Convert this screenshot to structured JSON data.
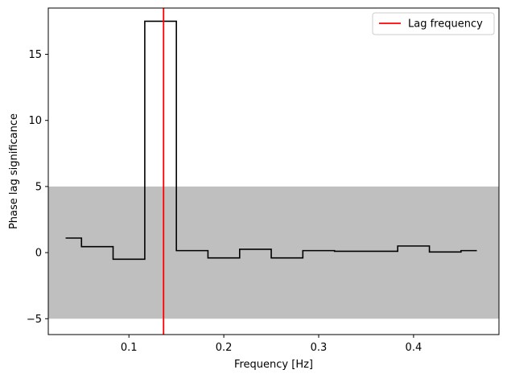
{
  "chart_data": {
    "type": "line",
    "title": "",
    "xlabel": "Frequency [Hz]",
    "ylabel": "Phase lag significance",
    "xlim": [
      0.015,
      0.49
    ],
    "ylim": [
      -6.2,
      18.5
    ],
    "x_ticks": [
      0.1,
      0.2,
      0.3,
      0.4
    ],
    "x_tick_labels": [
      "0.1",
      "0.2",
      "0.3",
      "0.4"
    ],
    "y_ticks": [
      -5,
      0,
      5,
      10,
      15
    ],
    "y_tick_labels": [
      "−5",
      "0",
      "5",
      "10",
      "15"
    ],
    "grid": false,
    "legend_position": "top-right",
    "significance_band": {
      "y_min": -5,
      "y_max": 5,
      "color": "#bfbfbf"
    },
    "series": [
      {
        "style": "step",
        "color": "#000000",
        "bin_edges": [
          0.0333,
          0.05,
          0.0833,
          0.1167,
          0.15,
          0.1833,
          0.2167,
          0.25,
          0.2833,
          0.3167,
          0.35,
          0.3833,
          0.4167,
          0.45,
          0.4667
        ],
        "values": [
          1.1,
          0.45,
          -0.5,
          17.5,
          0.15,
          -0.4,
          0.25,
          -0.4,
          0.15,
          0.1,
          0.1,
          0.5,
          0.05,
          0.15
        ]
      }
    ],
    "vertical_lines": [
      {
        "name": "Lag frequency",
        "x": 0.1365,
        "color": "#ff0000"
      }
    ],
    "legend": [
      {
        "label": "Lag frequency",
        "color": "#ff0000"
      }
    ]
  }
}
